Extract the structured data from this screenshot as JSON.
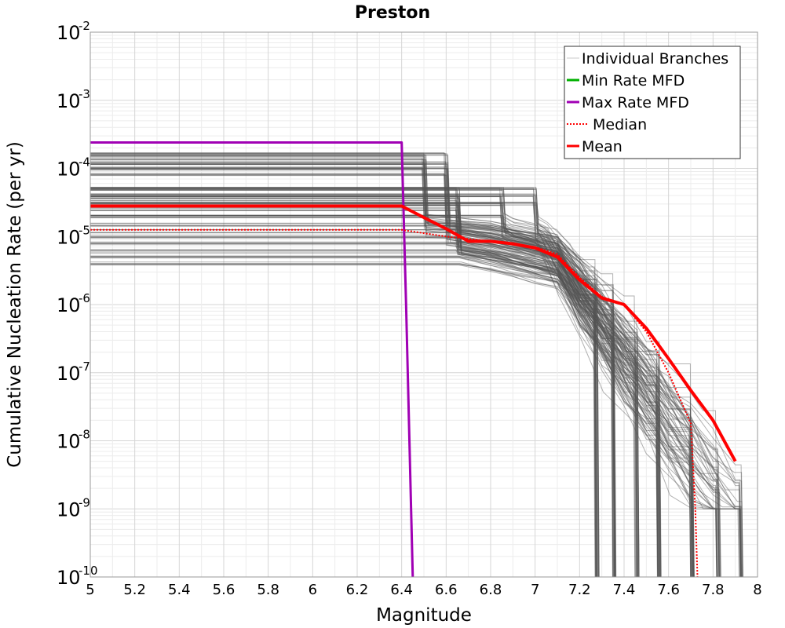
{
  "chart_data": {
    "type": "line",
    "title": "Preston",
    "xlabel": "Magnitude",
    "ylabel": "Cumulative Nucleation Rate (per yr)",
    "xlim": [
      5,
      8
    ],
    "ylim": [
      1e-10,
      0.01
    ],
    "yscale": "log",
    "grid": true,
    "legend_position": "top-right",
    "x_ticks": [
      "5",
      "5.2",
      "5.4",
      "5.6",
      "5.8",
      "6",
      "6.2",
      "6.4",
      "6.6",
      "6.8",
      "7",
      "7.2",
      "7.4",
      "7.6",
      "7.8",
      "8"
    ],
    "y_ticks": [
      {
        "base": "10",
        "exp": "-2"
      },
      {
        "base": "10",
        "exp": "-3"
      },
      {
        "base": "10",
        "exp": "-4"
      },
      {
        "base": "10",
        "exp": "-5"
      },
      {
        "base": "10",
        "exp": "-6"
      },
      {
        "base": "10",
        "exp": "-7"
      },
      {
        "base": "10",
        "exp": "-8"
      },
      {
        "base": "10",
        "exp": "-9"
      },
      {
        "base": "10",
        "exp": "-10"
      }
    ],
    "legend": [
      {
        "label": "Individual Branches",
        "color": "#c8c8c8",
        "style": "solid"
      },
      {
        "label": "Min Rate MFD",
        "color": "#00b000",
        "style": "solid"
      },
      {
        "label": "Max Rate MFD",
        "color": "#a000b4",
        "style": "solid"
      },
      {
        "label": "Median",
        "color": "#ff0000",
        "style": "dotted"
      },
      {
        "label": "Mean",
        "color": "#ff0000",
        "style": "solid"
      }
    ],
    "series": [
      {
        "name": "Max Rate MFD",
        "color": "#a000b4",
        "x": [
          5,
          6.4,
          6.42,
          6.45
        ],
        "y": [
          0.00024,
          0.00024,
          1e-06,
          1e-10
        ]
      },
      {
        "name": "Mean",
        "color": "#ff0000",
        "x": [
          5,
          6.4,
          6.5,
          6.6,
          6.7,
          6.8,
          6.9,
          7.0,
          7.1,
          7.2,
          7.3,
          7.4,
          7.5,
          7.6,
          7.7,
          7.8,
          7.9
        ],
        "y": [
          2.8e-05,
          2.8e-05,
          1.9e-05,
          1.3e-05,
          8.5e-06,
          8.5e-06,
          7.8e-06,
          6.8e-06,
          5e-06,
          2.3e-06,
          1.25e-06,
          1e-06,
          4.5e-07,
          1.6e-07,
          5.5e-08,
          2e-08,
          5e-09
        ]
      },
      {
        "name": "Median",
        "color": "#ff0000",
        "x": [
          5,
          6.4,
          6.6,
          6.8,
          7.0,
          7.1,
          7.2,
          7.3,
          7.4,
          7.5,
          7.6,
          7.7,
          7.72,
          7.73
        ],
        "y": [
          1.25e-05,
          1.25e-05,
          1e-05,
          8.5e-06,
          7e-06,
          5.5e-06,
          2.5e-06,
          1.3e-06,
          1e-06,
          4e-07,
          1e-07,
          1.8e-08,
          1e-09,
          1e-10
        ]
      }
    ],
    "branch_bundles": [
      {
        "plateaus": [
          0.00016,
          0.00014,
          0.00012,
          0.0001
        ],
        "drop_x": 6.5,
        "shoulder_y": 1.5e-05
      },
      {
        "plateaus": [
          0.00016,
          0.00012,
          0.0001,
          8e-05
        ],
        "drop_x": 6.6,
        "shoulder_y": 1.2e-05
      },
      {
        "plateaus": [
          5e-05,
          4e-05,
          3.5e-05,
          3e-05,
          2.5e-05,
          2e-05,
          1.5e-05,
          1.2e-05,
          1e-05,
          8e-06,
          6e-06,
          5e-06,
          4e-06
        ],
        "drop_x": 6.65,
        "shoulder_y": 9e-06
      },
      {
        "plateaus": [
          5e-05,
          4e-05,
          3e-05,
          2e-05
        ],
        "drop_x": 6.85,
        "shoulder_y": 1.5e-05
      },
      {
        "plateaus": [
          5e-05,
          4e-05,
          3e-05
        ],
        "drop_x": 7.0,
        "shoulder_y": 1.4e-05
      }
    ],
    "branch_cutoffs_x": [
      7.27,
      7.35,
      7.45,
      7.55,
      7.7,
      7.82,
      7.92
    ]
  }
}
